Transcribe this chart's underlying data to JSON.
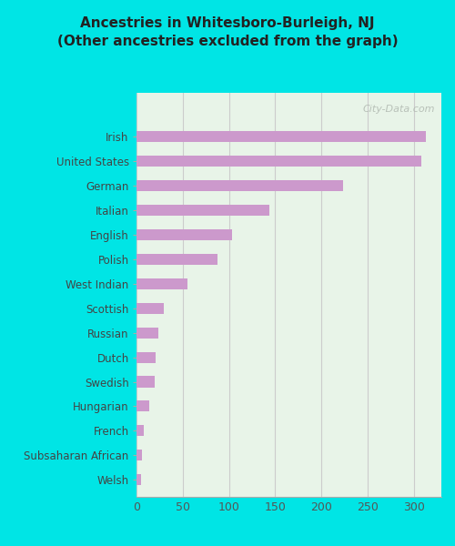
{
  "title": "Ancestries in Whitesboro-Burleigh, NJ\n(Other ancestries excluded from the graph)",
  "categories": [
    "Welsh",
    "Subsaharan African",
    "French",
    "Hungarian",
    "Swedish",
    "Dutch",
    "Russian",
    "Scottish",
    "West Indian",
    "Polish",
    "English",
    "Italian",
    "German",
    "United States",
    "Irish"
  ],
  "values": [
    5,
    6,
    8,
    14,
    20,
    21,
    24,
    30,
    55,
    88,
    103,
    144,
    224,
    308,
    313
  ],
  "bar_color": "#cc99cc",
  "background_color": "#e8f4e8",
  "outer_background": "#00e5e5",
  "title_color": "#222222",
  "label_color": "#444444",
  "xlim": [
    0,
    330
  ],
  "xticks": [
    0,
    50,
    100,
    150,
    200,
    250,
    300
  ],
  "grid_color": "#cccccc",
  "watermark": "City-Data.com"
}
